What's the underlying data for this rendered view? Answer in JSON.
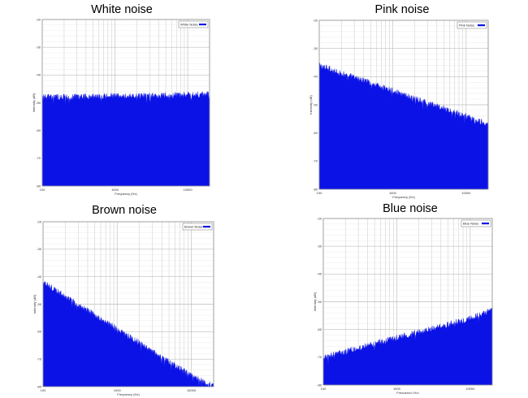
{
  "colors": {
    "series": "#0b12e6",
    "grid": "#c9c9c9",
    "frame": "#9a9a9a",
    "background": "#ffffff"
  },
  "chart_data": [
    {
      "type": "area",
      "title": "White noise",
      "xlabel": "Frequency (Hz)",
      "ylabel": "Intensity (dB)",
      "xscale": "log",
      "xlim": [
        100,
        20000
      ],
      "ylim": [
        -80,
        -20
      ],
      "xticks": [
        "100",
        "1000",
        "10000"
      ],
      "yticks": [
        "-20",
        "-30",
        "-40",
        "-50",
        "-60",
        "-70",
        "-80"
      ],
      "grid": true,
      "legend": "top-right",
      "series": [
        {
          "name": "White Noise",
          "x": [
            100,
            1000,
            10000,
            20000
          ],
          "values": [
            -48,
            -47.6,
            -47.2,
            -47
          ]
        }
      ]
    },
    {
      "type": "area",
      "title": "Pink noise",
      "xlabel": "Frequency (Hz)",
      "ylabel": "Intensity (dB)",
      "xscale": "log",
      "xlim": [
        100,
        20000
      ],
      "ylim": [
        -80,
        -20
      ],
      "xticks": [
        "100",
        "1000",
        "10000"
      ],
      "yticks": [
        "-20",
        "-30",
        "-40",
        "-50",
        "-60",
        "-70",
        "-80"
      ],
      "grid": true,
      "legend": "top-right",
      "series": [
        {
          "name": "Pink Noise",
          "x": [
            100,
            1000,
            10000,
            20000
          ],
          "values": [
            -36,
            -45,
            -54,
            -57
          ]
        }
      ]
    },
    {
      "type": "area",
      "title": "Brown noise",
      "xlabel": "Frequency (Hz)",
      "ylabel": "Intensity (dB)",
      "xscale": "log",
      "xlim": [
        100,
        20000
      ],
      "ylim": [
        -80,
        -20
      ],
      "xticks": [
        "100",
        "1000",
        "10000"
      ],
      "yticks": [
        "-20",
        "-30",
        "-40",
        "-50",
        "-60",
        "-70",
        "-80"
      ],
      "grid": true,
      "legend": "top-right",
      "series": [
        {
          "name": "Brown Noise",
          "x": [
            100,
            1000,
            10000,
            20000
          ],
          "values": [
            -42,
            -59,
            -76,
            -80
          ]
        }
      ]
    },
    {
      "type": "area",
      "title": "Blue noise",
      "xlabel": "Frequency (Hz)",
      "ylabel": "Intensity (dB)",
      "xscale": "log",
      "xlim": [
        100,
        20000
      ],
      "ylim": [
        -80,
        -20
      ],
      "xticks": [
        "100",
        "1000",
        "10000"
      ],
      "yticks": [
        "-20",
        "-30",
        "-40",
        "-50",
        "-60",
        "-70",
        "-80"
      ],
      "grid": true,
      "legend": "top-right",
      "series": [
        {
          "name": "Blue Noise",
          "x": [
            100,
            1000,
            10000,
            20000
          ],
          "values": [
            -70,
            -63,
            -56,
            -53
          ]
        }
      ]
    }
  ]
}
